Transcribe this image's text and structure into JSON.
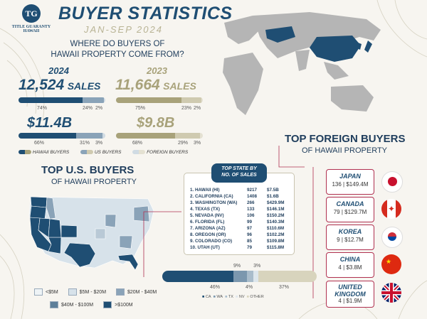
{
  "logo": {
    "initials": "TG",
    "name": "TITLE GUARANTY",
    "sub": "HAWAII"
  },
  "header": {
    "title": "BUYER STATISTICS",
    "subtitle": "JAN-SEP 2024"
  },
  "question": {
    "line1": "WHERE DO BUYERS OF",
    "line2": "HAWAII PROPERTY COME FROM?"
  },
  "years": {
    "y2024": {
      "year": "2024",
      "sales": "12,524",
      "sales_label": "SALES",
      "value": "$11.4B",
      "sales_pcts": [
        "74%",
        "24%",
        "2%"
      ],
      "value_pcts": [
        "66%",
        "31%",
        "3%"
      ],
      "sales_fill": [
        0.74,
        0.24,
        0.02
      ],
      "value_fill": [
        0.66,
        0.31,
        0.03
      ]
    },
    "y2023": {
      "year": "2023",
      "sales": "11,664",
      "sales_label": "SALES",
      "value": "$9.8B",
      "sales_pcts": [
        "75%",
        "23%",
        "2%"
      ],
      "value_pcts": [
        "68%",
        "29%",
        "3%"
      ],
      "sales_fill": [
        0.75,
        0.23,
        0.02
      ],
      "value_fill": [
        0.68,
        0.29,
        0.03
      ]
    }
  },
  "buyer_legend": [
    "HAWAII BUYERS",
    "US BUYERS",
    "FOREIGN BUYERS"
  ],
  "colors": {
    "navy": "#1f4e73",
    "mid": "#7b97ae",
    "light": "#c9d5de",
    "olive": "#a8a27a",
    "olive_light": "#d8d4bd",
    "accent": "#b03050"
  },
  "us_section": {
    "title": "TOP U.S. BUYERS",
    "subtitle": "OF HAWAII PROPERTY"
  },
  "top_state": {
    "title": "TOP STATE BY",
    "subtitle": "NO. OF SALES",
    "rows": [
      {
        "rank": "1. HAWAII (HI)",
        "sales": "9217",
        "value": "$7.5B"
      },
      {
        "rank": "2. CALIFORNIA (CA)",
        "sales": "1408",
        "value": "$1.6B"
      },
      {
        "rank": "3. WASHINGTON (WA)",
        "sales": "266",
        "value": "$429.9M"
      },
      {
        "rank": "4. TEXAS (TX)",
        "sales": "133",
        "value": "$146.1M"
      },
      {
        "rank": "5. NEVADA (NV)",
        "sales": "106",
        "value": "$150.2M"
      },
      {
        "rank": "6. FLORIDA (FL)",
        "sales": "99",
        "value": "$140.3M"
      },
      {
        "rank": "7. ARIZONA (AZ)",
        "sales": "97",
        "value": "$110.6M"
      },
      {
        "rank": "8. OREGON (OR)",
        "sales": "96",
        "value": "$102.2M"
      },
      {
        "rank": "9. COLORADO (CO)",
        "sales": "85",
        "value": "$109.8M"
      },
      {
        "rank": "10. UTAH (UT)",
        "sales": "79",
        "value": "$115.8M"
      }
    ]
  },
  "map_legend": [
    "<$5M",
    "$5M - $20M",
    "$20M - $40M",
    "$40M - $100M",
    ">$100M"
  ],
  "state_share": {
    "segments": [
      {
        "label": "CA",
        "value": 0.46,
        "pct": "46%"
      },
      {
        "label": "WA",
        "value": 0.09,
        "pct": "9%"
      },
      {
        "label": "TX",
        "value": 0.04,
        "pct": "4%"
      },
      {
        "label": "NV",
        "value": 0.03,
        "pct": "3%"
      },
      {
        "label": "OTHER",
        "value": 0.37,
        "pct": "37%"
      }
    ]
  },
  "foreign_section": {
    "title": "TOP FOREIGN BUYERS",
    "subtitle": "OF HAWAII PROPERTY"
  },
  "foreign": [
    {
      "name": "JAPAN",
      "value": "136 | $149.4M",
      "flag": "japan-flag"
    },
    {
      "name": "CANADA",
      "value": "79 | $129.7M",
      "flag": "canada-flag"
    },
    {
      "name": "KOREA",
      "value": "9 | $12.7M",
      "flag": "korea-flag"
    },
    {
      "name": "CHINA",
      "value": "4 | $3.8M",
      "flag": "china-flag"
    },
    {
      "name": "UNITED KINGDOM",
      "value": "4 | $1.9M",
      "flag": "uk-flag"
    }
  ]
}
